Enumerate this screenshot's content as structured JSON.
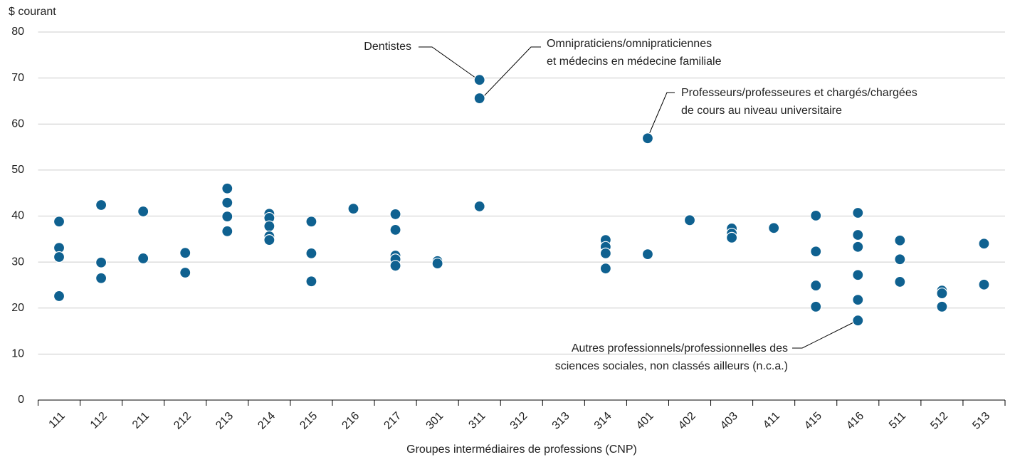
{
  "chart_data": {
    "type": "strip",
    "y_label": "$ courant",
    "x_label": "Groupes intermédiaires de professions (CNP)",
    "categories": [
      "111",
      "112",
      "211",
      "212",
      "213",
      "214",
      "215",
      "216",
      "217",
      "301",
      "311",
      "312",
      "313",
      "314",
      "401",
      "402",
      "403",
      "411",
      "415",
      "416",
      "511",
      "512",
      "513"
    ],
    "x": [
      "111",
      "111",
      "111",
      "111",
      "112",
      "112",
      "112",
      "211",
      "211",
      "212",
      "212",
      "213",
      "213",
      "213",
      "213",
      "214",
      "214",
      "214",
      "214",
      "214",
      "215",
      "215",
      "215",
      "216",
      "217",
      "217",
      "217",
      "217",
      "217",
      "301",
      "301",
      "311",
      "311",
      "311",
      "314",
      "314",
      "314",
      "314",
      "401",
      "401",
      "402",
      "403",
      "403",
      "403",
      "411",
      "415",
      "415",
      "415",
      "415",
      "416",
      "416",
      "416",
      "416",
      "416",
      "416",
      "511",
      "511",
      "511",
      "512",
      "512",
      "512",
      "513",
      "513"
    ],
    "y": [
      38.8,
      33.1,
      31.1,
      22.6,
      42.4,
      29.9,
      26.5,
      41.0,
      30.8,
      32.0,
      27.7,
      46.0,
      42.9,
      39.9,
      36.7,
      40.5,
      39.6,
      37.8,
      35.6,
      34.8,
      38.8,
      31.9,
      25.8,
      41.6,
      40.4,
      37.0,
      31.4,
      30.6,
      29.2,
      30.2,
      29.7,
      69.6,
      65.6,
      42.1,
      34.8,
      33.3,
      31.9,
      28.6,
      56.9,
      31.7,
      39.1,
      37.3,
      36.2,
      35.3,
      37.4,
      40.1,
      32.3,
      24.9,
      20.3,
      40.7,
      35.9,
      33.3,
      27.2,
      21.8,
      17.3,
      34.7,
      30.6,
      25.7,
      23.8,
      23.2,
      20.3,
      34.0,
      25.1
    ],
    "color": "#0f6190",
    "ylim": [
      0,
      80
    ],
    "yticks": [
      0,
      10,
      20,
      30,
      40,
      50,
      60,
      70,
      80
    ],
    "grid": true,
    "annotations": [
      {
        "lines": [
          "Dentistes"
        ]
      },
      {
        "lines": [
          "Omnipraticiens/omnipraticiennes",
          "et médecins en médecine familiale"
        ]
      },
      {
        "lines": [
          "Professeurs/professeures et chargés/chargées",
          "de cours au niveau universitaire"
        ]
      },
      {
        "lines": [
          "Autres professionnels/professionnelles des",
          "sciences sociales, non classés ailleurs (n.c.a.)"
        ]
      }
    ]
  }
}
